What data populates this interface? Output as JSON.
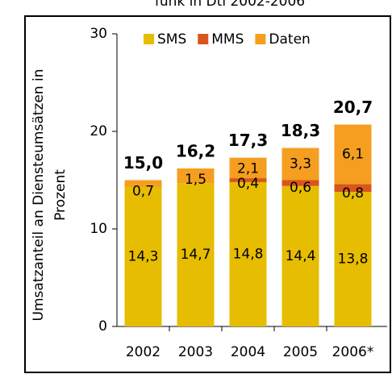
{
  "chart_data": {
    "type": "stacked_bar",
    "title": "funk in Dtl 2002-2006",
    "y_label": [
      "Umsatzanteil an Diensteumsätzen in",
      "Prozent"
    ],
    "categories": [
      "2002",
      "2003",
      "2004",
      "2005",
      "2006*"
    ],
    "series": [
      {
        "name": "SMS",
        "color": "#e6bd00",
        "values": [
          14.3,
          14.7,
          14.8,
          14.4,
          13.8
        ],
        "value_labels": [
          "14,3",
          "14,7",
          "14,8",
          "14,4",
          "13,8"
        ]
      },
      {
        "name": "MMS",
        "color": "#d8561c",
        "values": [
          null,
          null,
          0.4,
          0.6,
          0.8
        ],
        "value_labels": [
          null,
          null,
          "0,4",
          "0,6",
          "0,8"
        ]
      },
      {
        "name": "Daten",
        "color": "#f59e1f",
        "values": [
          0.7,
          1.5,
          2.1,
          3.3,
          6.1
        ],
        "value_labels": [
          "0,7",
          "1,5",
          "2,1",
          "3,3",
          "6,1"
        ]
      }
    ],
    "totals": [
      15.0,
      16.2,
      17.3,
      18.3,
      20.7
    ],
    "total_labels": [
      "15,0",
      "16,2",
      "17,3",
      "18,3",
      "20,7"
    ],
    "ylim": [
      0,
      30
    ],
    "yticks": [
      0,
      10,
      20,
      30
    ],
    "legend": "top"
  }
}
